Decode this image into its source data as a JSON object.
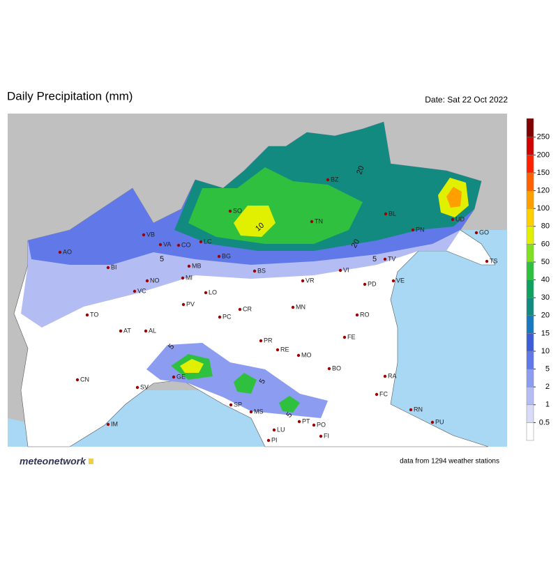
{
  "header": {
    "title": "Daily Precipitation (mm)",
    "date": "Date: Sat 22 Oct 2022"
  },
  "legend": {
    "levels": [
      0.5,
      1,
      2,
      5,
      10,
      15,
      20,
      30,
      40,
      50,
      60,
      80,
      100,
      120,
      150,
      200,
      250
    ],
    "colors": [
      "#ffffff",
      "#d8dcf8",
      "#b4bcf4",
      "#8c9cf0",
      "#6078e8",
      "#3c5cd8",
      "#1878c0",
      "#128a80",
      "#10a060",
      "#30c040",
      "#80e020",
      "#e0f000",
      "#ffd000",
      "#ffa000",
      "#ff6000",
      "#ff2000",
      "#d00000",
      "#800000"
    ]
  },
  "cities": [
    "BZ",
    "SO",
    "TN",
    "BL",
    "UD",
    "PN",
    "GO",
    "TS",
    "VB",
    "VA",
    "CO",
    "LC",
    "AO",
    "BG",
    "BI",
    "MB",
    "BS",
    "VI",
    "TV",
    "VE",
    "NO",
    "MI",
    "VR",
    "PD",
    "VC",
    "LO",
    "PV",
    "CR",
    "MN",
    "TO",
    "PC",
    "RO",
    "AT",
    "AL",
    "FE",
    "PR",
    "RE",
    "MO",
    "BO",
    "GE",
    "RA",
    "CN",
    "SV",
    "FC",
    "SP",
    "MS",
    "RN",
    "PT",
    "PO",
    "IM",
    "PU",
    "LU",
    "FI",
    "PI"
  ],
  "contour_labels": [
    20,
    20,
    5,
    5,
    10,
    5,
    5,
    5
  ],
  "footer": {
    "brand": "meteonetwork",
    "note": "data from 1294 weather stations"
  }
}
